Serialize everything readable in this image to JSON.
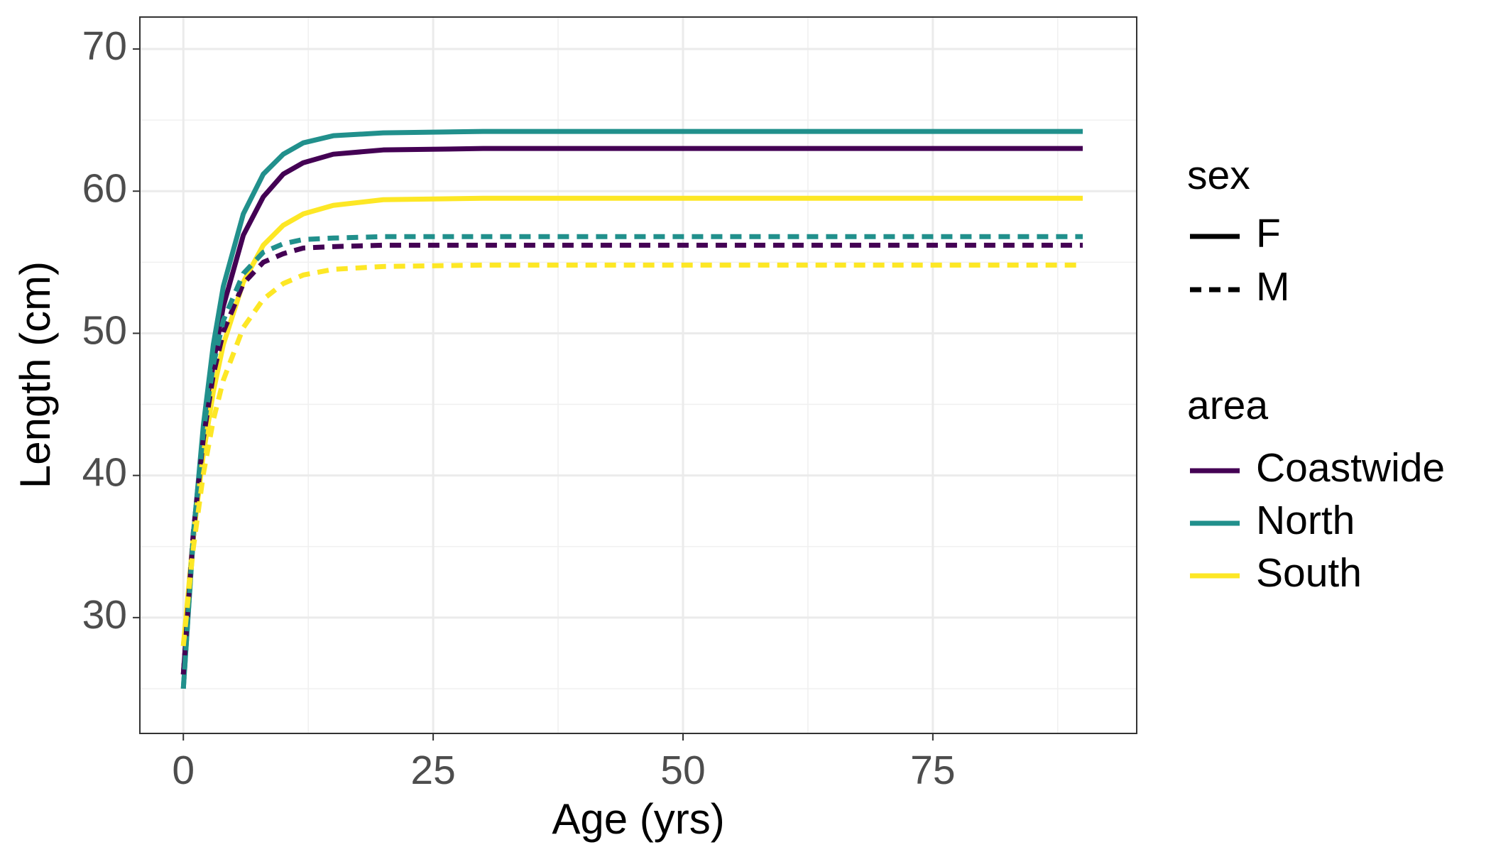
{
  "chart_data": {
    "type": "line",
    "x_label": "Age (yrs)",
    "y_label": "Length (cm)",
    "x": [
      0,
      1,
      2,
      3,
      4,
      6,
      8,
      10,
      12,
      15,
      20,
      30,
      50,
      90
    ],
    "series": [
      {
        "area": "Coastwide",
        "sex": "F",
        "color": "#440154",
        "dashed": false,
        "values": [
          26,
          35.6,
          42.7,
          47.9,
          51.9,
          56.9,
          59.6,
          61.2,
          62.0,
          62.6,
          62.9,
          63.0,
          63.0,
          63.0
        ]
      },
      {
        "area": "North",
        "sex": "F",
        "color": "#21908c",
        "dashed": false,
        "values": [
          25,
          35.7,
          43.5,
          49.2,
          53.3,
          58.4,
          61.2,
          62.6,
          63.4,
          63.9,
          64.1,
          64.2,
          64.2,
          64.2
        ]
      },
      {
        "area": "South",
        "sex": "F",
        "color": "#fde725",
        "dashed": false,
        "values": [
          28,
          35.7,
          41.5,
          45.9,
          49.2,
          53.6,
          56.2,
          57.6,
          58.4,
          59.0,
          59.4,
          59.5,
          59.5,
          59.5
        ]
      },
      {
        "area": "Coastwide",
        "sex": "M",
        "color": "#440154",
        "dashed": true,
        "values": [
          26,
          36.0,
          42.6,
          47.1,
          50.1,
          53.5,
          55.0,
          55.6,
          56.0,
          56.1,
          56.2,
          56.2,
          56.2,
          56.2
        ]
      },
      {
        "area": "North",
        "sex": "M",
        "color": "#21908c",
        "dashed": true,
        "values": [
          25,
          35.9,
          43.1,
          47.8,
          50.9,
          54.2,
          55.7,
          56.3,
          56.6,
          56.7,
          56.8,
          56.8,
          56.8,
          56.8
        ]
      },
      {
        "area": "South",
        "sex": "M",
        "color": "#fde725",
        "dashed": true,
        "values": [
          28,
          34.9,
          40.1,
          43.9,
          46.7,
          50.4,
          52.4,
          53.5,
          54.1,
          54.5,
          54.7,
          54.8,
          54.8,
          54.8
        ]
      }
    ],
    "xlim": [
      -4.35,
      95.4
    ],
    "ylim": [
      21.85,
      72.25
    ],
    "xticks": [
      0,
      25,
      50,
      75
    ],
    "yticks": [
      30,
      40,
      50,
      60,
      70
    ],
    "minor_xticks": [
      12.5,
      37.5,
      62.5,
      87.5
    ],
    "minor_yticks": [
      25,
      35,
      45,
      55,
      65
    ],
    "grid": true,
    "legends": [
      {
        "title": "sex",
        "items": [
          {
            "label": "F",
            "dashed": false
          },
          {
            "label": "M",
            "dashed": true
          }
        ]
      },
      {
        "title": "area",
        "items": [
          {
            "label": "Coastwide",
            "color": "#440154"
          },
          {
            "label": "North",
            "color": "#21908c"
          },
          {
            "label": "South",
            "color": "#fde725"
          }
        ]
      }
    ]
  }
}
